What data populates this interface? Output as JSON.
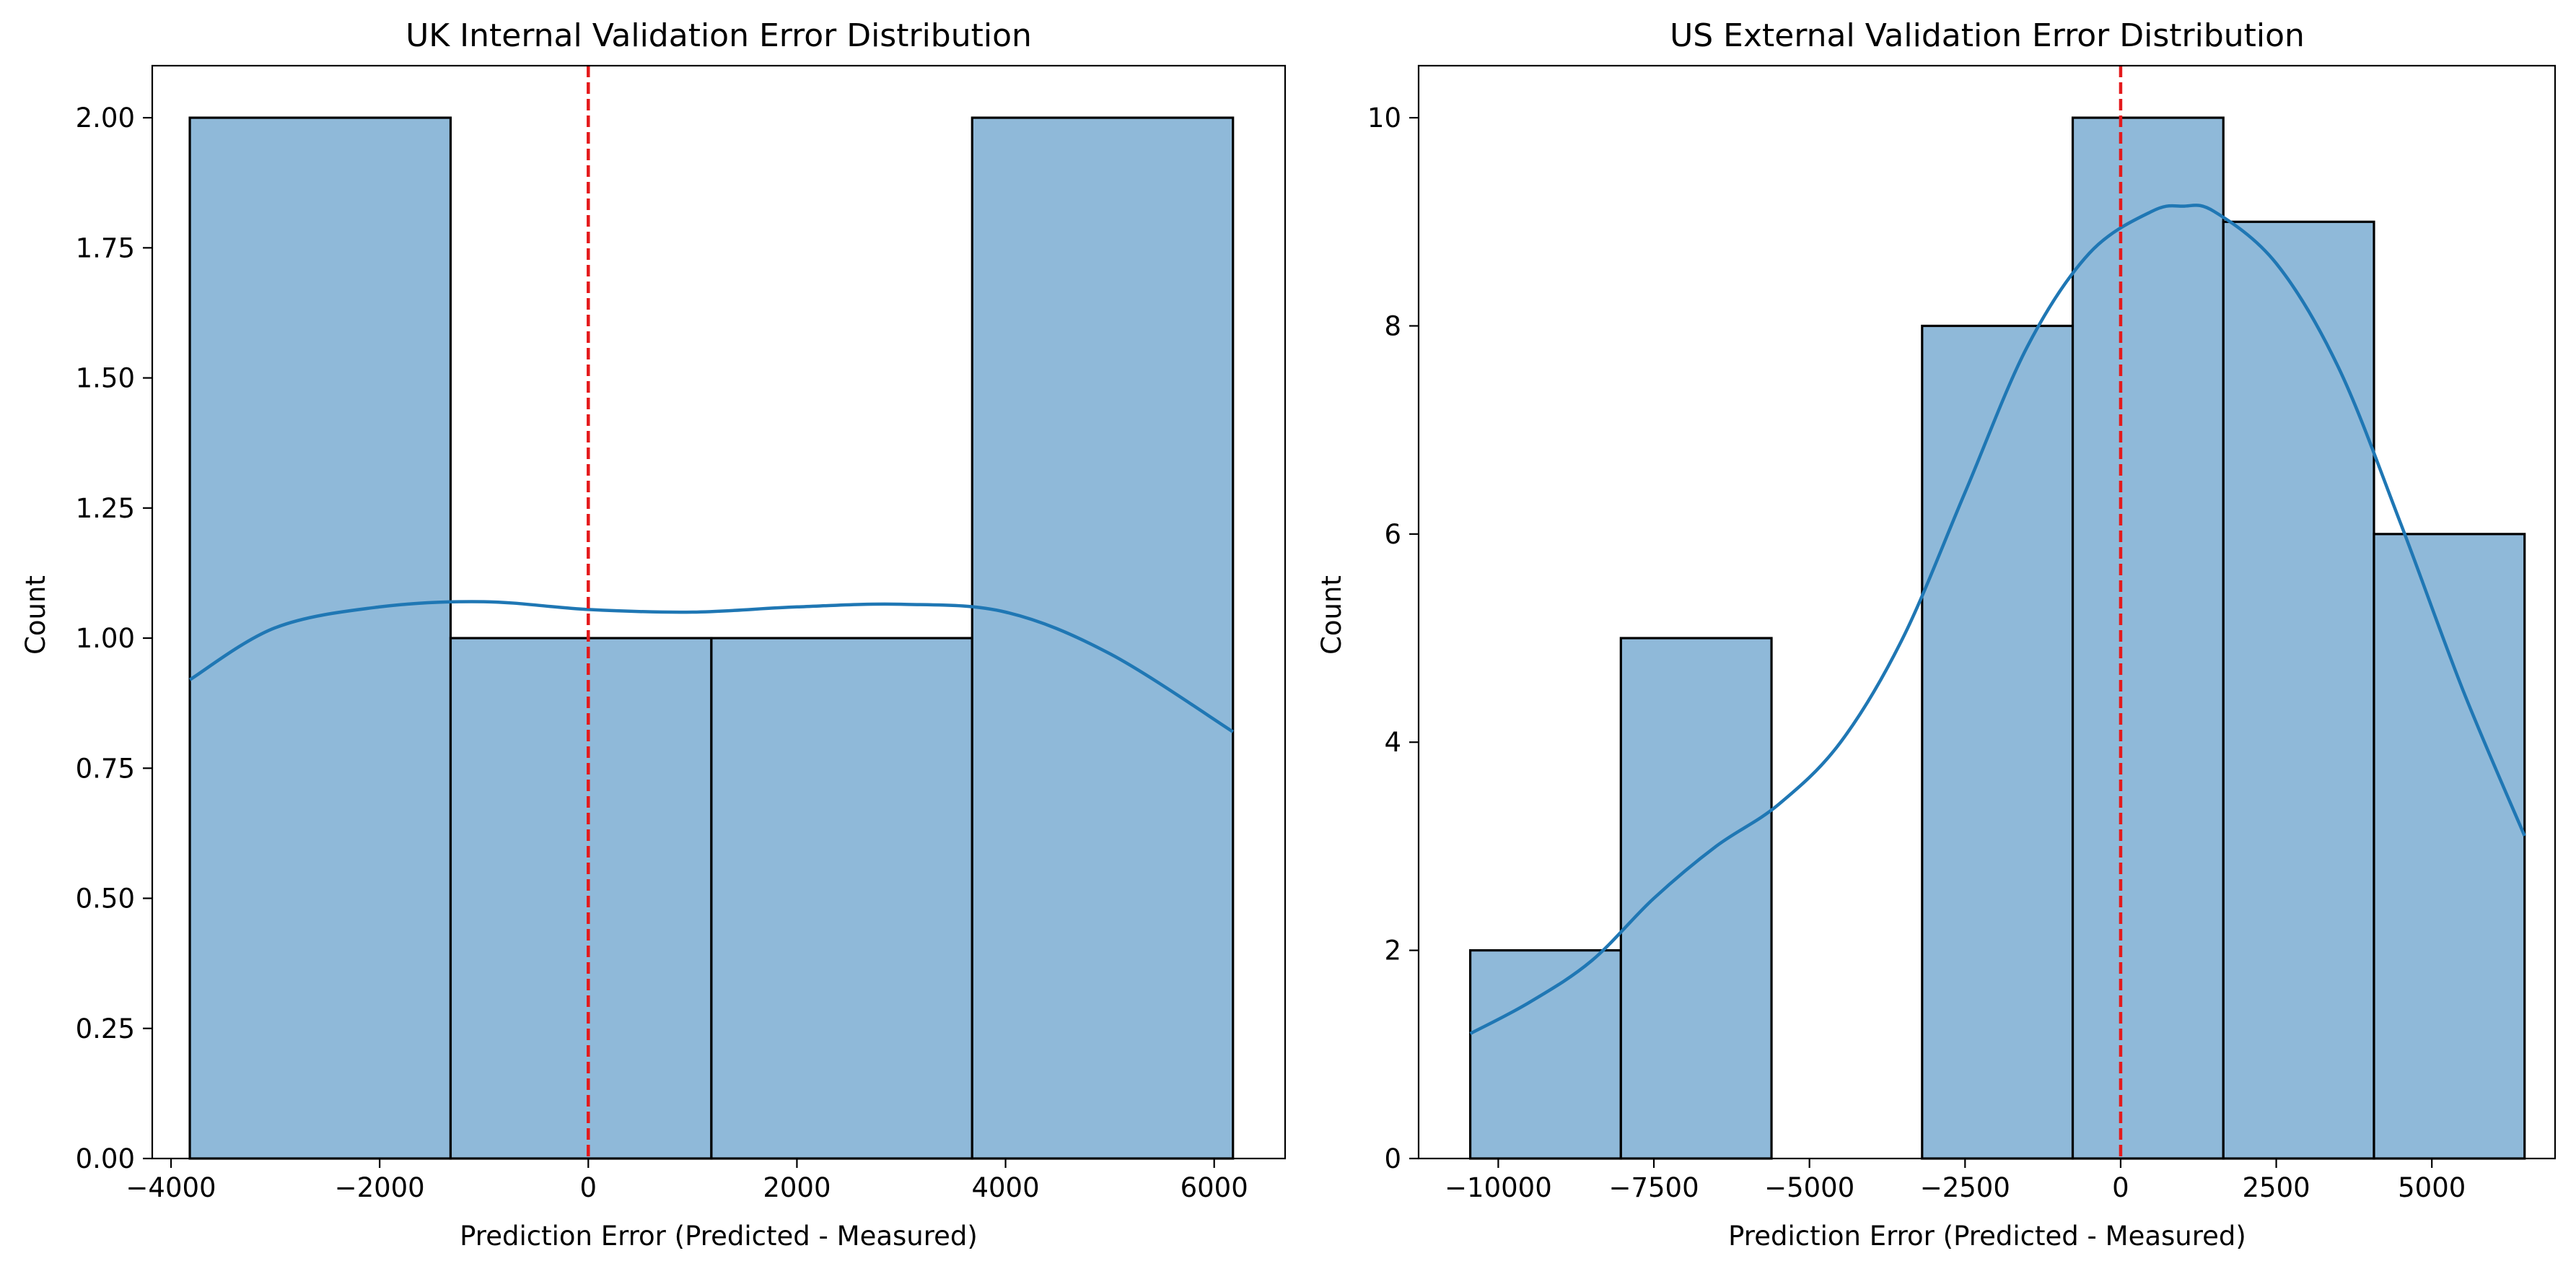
{
  "chart_data": [
    {
      "type": "bar",
      "title": "UK Internal Validation Error Distribution",
      "xlabel": "Prediction Error (Predicted - Measured)",
      "ylabel": "Count",
      "xlim": [
        -4180,
        6680
      ],
      "ylim": [
        0,
        2.1
      ],
      "xticks": [
        -4000,
        -2000,
        0,
        2000,
        4000,
        6000
      ],
      "xtick_labels": [
        "−4000",
        "−2000",
        "0",
        "2000",
        "4000",
        "6000"
      ],
      "yticks": [
        0,
        0.25,
        0.5,
        0.75,
        1.0,
        1.25,
        1.5,
        1.75,
        2.0
      ],
      "ytick_labels": [
        "0.00",
        "0.25",
        "0.50",
        "0.75",
        "1.00",
        "1.25",
        "1.50",
        "1.75",
        "2.00"
      ],
      "bin_edges": [
        -3820,
        -1320,
        1180,
        3680,
        6180
      ],
      "values": [
        2,
        1,
        1,
        2
      ],
      "kde": {
        "x": [
          -3820,
          -3000,
          -2000,
          -1000,
          0,
          1000,
          2000,
          3000,
          4000,
          5000,
          6180
        ],
        "y": [
          0.92,
          1.02,
          1.06,
          1.07,
          1.055,
          1.05,
          1.06,
          1.065,
          1.05,
          0.97,
          0.82
        ]
      },
      "reference_line_x": 0,
      "colors": {
        "bar_fill": "#8fb9d9",
        "bar_edge": "#000000",
        "kde": "#1f77b4",
        "reference_line": "#e41a1c"
      }
    },
    {
      "type": "bar",
      "title": "US External Validation Error Distribution",
      "xlabel": "Prediction Error (Predicted - Measured)",
      "ylabel": "Count",
      "xlim": [
        -11280,
        6980
      ],
      "ylim": [
        0,
        10.5
      ],
      "xticks": [
        -10000,
        -7500,
        -5000,
        -2500,
        0,
        2500,
        5000
      ],
      "xtick_labels": [
        "−10000",
        "−7500",
        "−5000",
        "−2500",
        "0",
        "2500",
        "5000"
      ],
      "yticks": [
        0,
        2,
        4,
        6,
        8,
        10
      ],
      "ytick_labels": [
        "0",
        "2",
        "4",
        "6",
        "8",
        "10"
      ],
      "bin_edges": [
        -10450,
        -8030,
        -5610,
        -3190,
        -770,
        1650,
        4070,
        6490
      ],
      "values": [
        2,
        5,
        0,
        8,
        10,
        9,
        6
      ],
      "kde": {
        "x": [
          -10450,
          -9500,
          -8500,
          -7500,
          -6500,
          -5500,
          -4500,
          -3500,
          -2500,
          -1500,
          -500,
          500,
          1000,
          1500,
          2500,
          3500,
          4500,
          5500,
          6490
        ],
        "y": [
          1.2,
          1.5,
          1.9,
          2.5,
          3.0,
          3.4,
          4.0,
          5.0,
          6.4,
          7.8,
          8.7,
          9.1,
          9.15,
          9.1,
          8.6,
          7.6,
          6.1,
          4.5,
          3.1
        ]
      },
      "reference_line_x": 0,
      "colors": {
        "bar_fill": "#8fb9d9",
        "bar_edge": "#000000",
        "kde": "#1f77b4",
        "reference_line": "#e41a1c"
      }
    }
  ]
}
